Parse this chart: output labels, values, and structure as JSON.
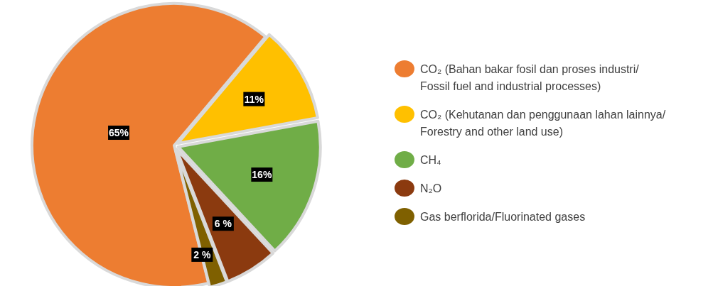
{
  "chart_data": {
    "type": "pie",
    "categories": [
      "CO₂ (Bahan bakar fosil dan proses industri/ Fossil fuel and industrial processes)",
      "CO₂ (Kehutanan dan penggunaan lahan lainnya/ Forestry and other land use)",
      "CH₄",
      "N₂O",
      "Gas berflorida/Fluorinated gases"
    ],
    "values": [
      65,
      11,
      16,
      6,
      2
    ],
    "colors": [
      "#ed7d31",
      "#ffc000",
      "#70ad47",
      "#8b3a0f",
      "#7f6000"
    ],
    "value_labels": [
      "65%",
      "11%",
      "16%",
      "6 %",
      "2 %"
    ],
    "legend": "right"
  }
}
